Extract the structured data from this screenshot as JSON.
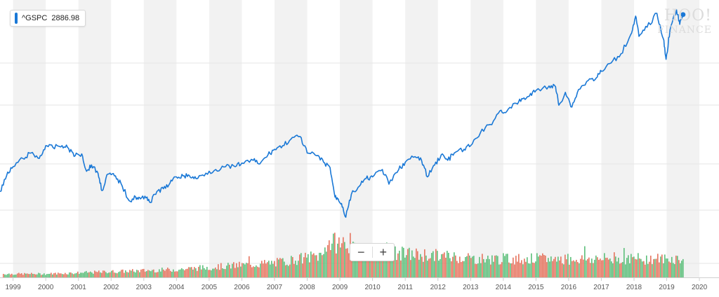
{
  "legend": {
    "symbol": "^GSPC",
    "value": "2886.98",
    "color": "#1a78d6"
  },
  "watermark": {
    "line1": "HOO!",
    "line2": "FINANCE"
  },
  "zoom": {
    "minus": "−",
    "plus": "+"
  },
  "colors": {
    "price": "#1a78d6",
    "volume_up": "#5cbf7a",
    "volume_down": "#e6735e",
    "band": "#f2f2f2"
  },
  "chart_data": {
    "type": "line",
    "series": [
      {
        "name": "^GSPC",
        "x": [
          1998.6,
          1998.8,
          1999.0,
          1999.3,
          1999.55,
          1999.8,
          2000.0,
          2000.22,
          2000.5,
          2000.7,
          2000.9,
          2001.1,
          2001.25,
          2001.4,
          2001.6,
          2001.72,
          2001.9,
          2002.1,
          2002.3,
          2002.55,
          2002.75,
          2002.9,
          2003.1,
          2003.2,
          2003.4,
          2003.6,
          2003.8,
          2004.0,
          2004.2,
          2004.4,
          2004.6,
          2004.9,
          2005.2,
          2005.5,
          2005.8,
          2006.0,
          2006.35,
          2006.55,
          2006.8,
          2007.0,
          2007.25,
          2007.5,
          2007.78,
          2008.0,
          2008.3,
          2008.5,
          2008.7,
          2008.85,
          2008.95,
          2009.05,
          2009.18,
          2009.35,
          2009.6,
          2009.8,
          2010.0,
          2010.3,
          2010.5,
          2010.8,
          2011.0,
          2011.3,
          2011.5,
          2011.68,
          2011.9,
          2012.1,
          2012.3,
          2012.5,
          2012.8,
          2013.0,
          2013.3,
          2013.6,
          2013.9,
          2014.1,
          2014.4,
          2014.6,
          2014.8,
          2015.0,
          2015.4,
          2015.6,
          2015.7,
          2015.9,
          2016.1,
          2016.3,
          2016.6,
          2016.85,
          2017.0,
          2017.3,
          2017.6,
          2017.9,
          2018.05,
          2018.15,
          2018.4,
          2018.7,
          2018.9,
          2018.98,
          2019.1,
          2019.3,
          2019.4,
          2019.5
        ],
        "values": [
          960,
          1130,
          1230,
          1320,
          1380,
          1320,
          1460,
          1440,
          1460,
          1430,
          1350,
          1370,
          1180,
          1250,
          1160,
          970,
          1150,
          1130,
          1050,
          860,
          900,
          880,
          900,
          840,
          960,
          990,
          1050,
          1120,
          1130,
          1130,
          1100,
          1160,
          1200,
          1230,
          1230,
          1270,
          1300,
          1260,
          1360,
          1420,
          1460,
          1530,
          1560,
          1380,
          1350,
          1280,
          1220,
          900,
          880,
          830,
          680,
          930,
          1020,
          1100,
          1120,
          1200,
          1040,
          1200,
          1280,
          1340,
          1300,
          1120,
          1250,
          1360,
          1300,
          1380,
          1420,
          1460,
          1600,
          1690,
          1840,
          1830,
          1920,
          1970,
          2000,
          2060,
          2110,
          2100,
          1900,
          2040,
          1880,
          2070,
          2170,
          2200,
          2270,
          2360,
          2460,
          2670,
          2870,
          2650,
          2750,
          2900,
          2620,
          2400,
          2720,
          2940,
          2780,
          2886.98
        ]
      }
    ],
    "volume_note": "daily trading volume bars, green = up, red = down",
    "x_ticks": [
      "1999",
      "2000",
      "2001",
      "2002",
      "2003",
      "2004",
      "2005",
      "2006",
      "2007",
      "2008",
      "2009",
      "2010",
      "2011",
      "2012",
      "2013",
      "2014",
      "2015",
      "2016",
      "2017",
      "2018",
      "2019",
      "2020"
    ],
    "xlim": [
      1998.6,
      2020.6
    ],
    "ylim": [
      620,
      3000
    ],
    "grid": true,
    "legend_position": "top-left"
  }
}
